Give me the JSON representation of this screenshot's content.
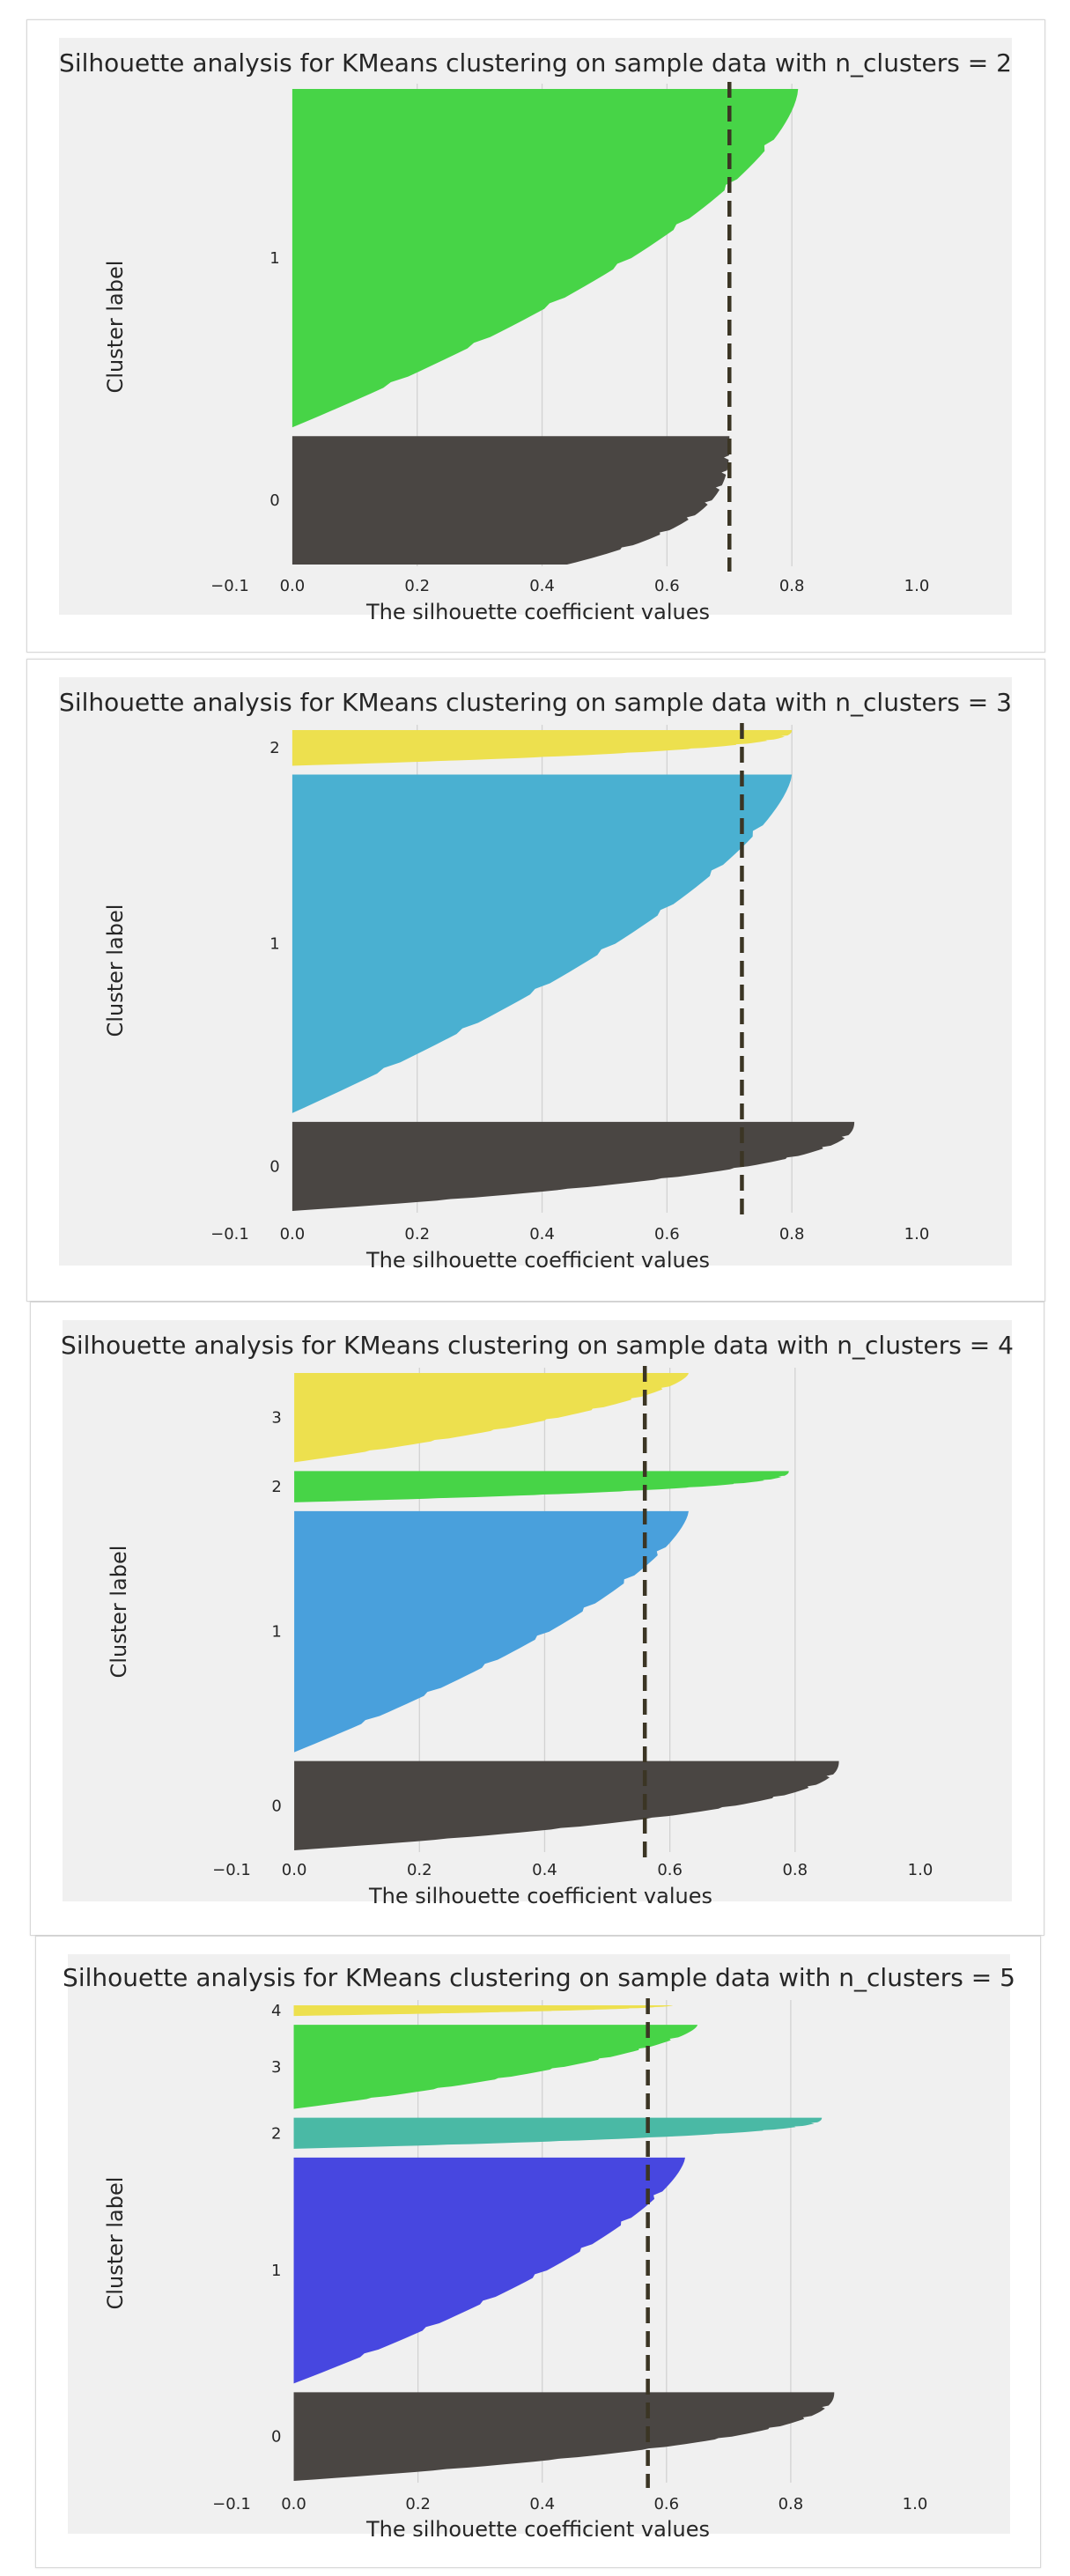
{
  "chart_data": [
    {
      "type": "silhouette",
      "title": "Silhouette analysis for KMeans clustering on sample data with n_clusters = 2",
      "xlabel": "The silhouette coefficient values",
      "ylabel": "Cluster label",
      "xlim": [
        -0.1,
        1.0
      ],
      "xticks": [
        "−0.1",
        "0.0",
        "0.2",
        "0.4",
        "0.6",
        "0.8",
        "1.0"
      ],
      "xtick_values": [
        -0.1,
        0.0,
        0.2,
        0.4,
        0.6,
        0.8,
        1.0
      ],
      "average_score": 0.7,
      "clusters": [
        {
          "label": "0",
          "color": "#4a4643",
          "rows": 110,
          "max": 0.7,
          "min": 0.44,
          "curve": 3.2
        },
        {
          "label": "1",
          "color": "#47d447",
          "rows": 290,
          "max": 0.81,
          "min": 0.0,
          "curve": 1.6
        }
      ]
    },
    {
      "type": "silhouette",
      "title": "Silhouette analysis for KMeans clustering on sample data with n_clusters = 3",
      "xlabel": "The silhouette coefficient values",
      "ylabel": "Cluster label",
      "xlim": [
        -0.1,
        1.0
      ],
      "xticks": [
        "−0.1",
        "0.0",
        "0.2",
        "0.4",
        "0.6",
        "0.8",
        "1.0"
      ],
      "xtick_values": [
        -0.1,
        0.0,
        0.2,
        0.4,
        0.6,
        0.8,
        1.0
      ],
      "average_score": 0.72,
      "clusters": [
        {
          "label": "0",
          "color": "#4a4643",
          "rows": 100,
          "max": 0.9,
          "min": 0.0,
          "curve": 2.4
        },
        {
          "label": "1",
          "color": "#4ab0d1",
          "rows": 380,
          "max": 0.8,
          "min": 0.0,
          "curve": 1.5
        },
        {
          "label": "2",
          "color": "#ede04e",
          "rows": 40,
          "max": 0.8,
          "min": 0.0,
          "curve": 2.5
        }
      ]
    },
    {
      "type": "silhouette",
      "title": "Silhouette analysis for KMeans clustering on sample data with n_clusters = 4",
      "xlabel": "The silhouette coefficient values",
      "ylabel": "Cluster label",
      "xlim": [
        -0.1,
        1.0
      ],
      "xticks": [
        "−0.1",
        "0.0",
        "0.2",
        "0.4",
        "0.6",
        "0.8",
        "1.0"
      ],
      "xtick_values": [
        -0.1,
        0.0,
        0.2,
        0.4,
        0.6,
        0.8,
        1.0
      ],
      "average_score": 0.56,
      "clusters": [
        {
          "label": "0",
          "color": "#4a4643",
          "rows": 100,
          "max": 0.87,
          "min": 0.0,
          "curve": 2.4
        },
        {
          "label": "1",
          "color": "#49a0dc",
          "rows": 270,
          "max": 0.63,
          "min": 0.0,
          "curve": 1.5
        },
        {
          "label": "2",
          "color": "#47d447",
          "rows": 35,
          "max": 0.79,
          "min": 0.0,
          "curve": 2.5
        },
        {
          "label": "3",
          "color": "#ede04e",
          "rows": 100,
          "max": 0.63,
          "min": 0.0,
          "curve": 1.6
        }
      ]
    },
    {
      "type": "silhouette",
      "title": "Silhouette analysis for KMeans clustering on sample data with n_clusters = 5",
      "xlabel": "The silhouette coefficient values",
      "ylabel": "Cluster label",
      "xlim": [
        -0.1,
        1.0
      ],
      "xticks": [
        "−0.1",
        "0.0",
        "0.2",
        "0.4",
        "0.6",
        "0.8",
        "1.0"
      ],
      "xtick_values": [
        -0.1,
        0.0,
        0.2,
        0.4,
        0.6,
        0.8,
        1.0
      ],
      "average_score": 0.57,
      "clusters": [
        {
          "label": "0",
          "color": "#4a4643",
          "rows": 100,
          "max": 0.87,
          "min": 0.0,
          "curve": 2.4
        },
        {
          "label": "1",
          "color": "#4747e0",
          "rows": 255,
          "max": 0.63,
          "min": 0.0,
          "curve": 1.5
        },
        {
          "label": "2",
          "color": "#4ab9a5",
          "rows": 35,
          "max": 0.85,
          "min": 0.0,
          "curve": 2.5
        },
        {
          "label": "3",
          "color": "#47d447",
          "rows": 95,
          "max": 0.65,
          "min": 0.0,
          "curve": 1.6
        },
        {
          "label": "4",
          "color": "#ede04e",
          "rows": 12,
          "max": 0.61,
          "min": 0.0,
          "curve": 1.8
        }
      ]
    }
  ]
}
